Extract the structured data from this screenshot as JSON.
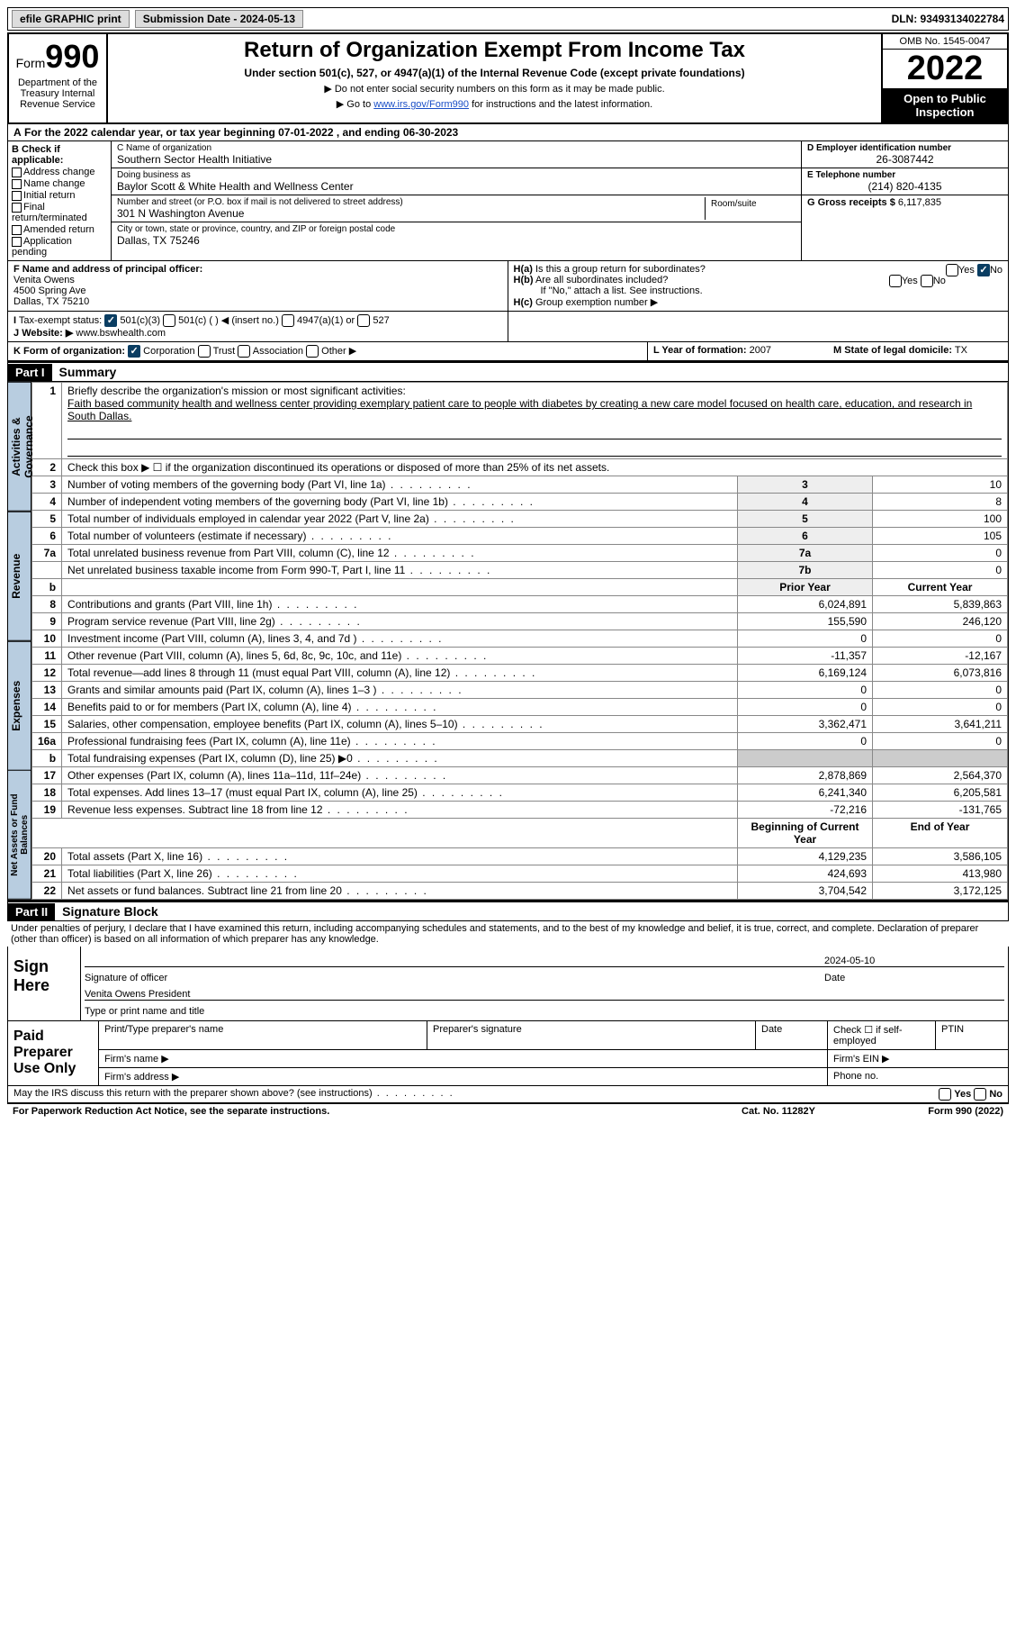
{
  "topbar": {
    "efile": "efile GRAPHIC print",
    "sub_label": "Submission Date - 2024-05-13",
    "dln": "DLN: 93493134022784"
  },
  "header": {
    "form_prefix": "Form",
    "form_num": "990",
    "title": "Return of Organization Exempt From Income Tax",
    "subtitle": "Under section 501(c), 527, or 4947(a)(1) of the Internal Revenue Code (except private foundations)",
    "note1": "▶ Do not enter social security numbers on this form as it may be made public.",
    "note2_pre": "▶ Go to ",
    "note2_link": "www.irs.gov/Form990",
    "note2_post": " for instructions and the latest information.",
    "omb": "OMB No. 1545-0047",
    "year": "2022",
    "open": "Open to Public Inspection",
    "dept": "Department of the Treasury Internal Revenue Service"
  },
  "calrow": "For the 2022 calendar year, or tax year beginning 07-01-2022    , and ending 06-30-2023",
  "sectionB": {
    "label": "B Check if applicable:",
    "items": [
      "Address change",
      "Name change",
      "Initial return",
      "Final return/terminated",
      "Amended return",
      "Application pending"
    ]
  },
  "sectionC": {
    "name_label": "C Name of organization",
    "name": "Southern Sector Health Initiative",
    "dba_label": "Doing business as",
    "dba": "Baylor Scott & White Health and Wellness Center",
    "street_label": "Number and street (or P.O. box if mail is not delivered to street address)",
    "room_label": "Room/suite",
    "street": "301 N Washington Avenue",
    "city_label": "City or town, state or province, country, and ZIP or foreign postal code",
    "city": "Dallas, TX  75246"
  },
  "sectionD": {
    "label": "D Employer identification number",
    "val": "26-3087442"
  },
  "sectionE": {
    "label": "E Telephone number",
    "val": "(214) 820-4135"
  },
  "sectionG": {
    "label": "G Gross receipts $",
    "val": "6,117,835"
  },
  "sectionF": {
    "label": "F Name and address of principal officer:",
    "name": "Venita Owens",
    "addr1": "4500 Spring Ave",
    "addr2": "Dallas, TX  75210"
  },
  "sectionH": {
    "a": "Is this a group return for subordinates?",
    "b": "Are all subordinates included?",
    "b_note": "If \"No,\" attach a list. See instructions.",
    "c": "Group exemption number ▶",
    "prefix_a": "H(a)",
    "prefix_b": "H(b)",
    "prefix_c": "H(c)",
    "yes": "Yes",
    "no": "No"
  },
  "sectionI": {
    "label": "Tax-exempt status:",
    "opts": [
      "501(c)(3)",
      "501(c) (  ) ◀ (insert no.)",
      "4947(a)(1) or",
      "527"
    ]
  },
  "sectionJ": {
    "label": "Website: ▶",
    "val": "www.bswhealth.com"
  },
  "sectionK": {
    "label": "K Form of organization:",
    "opts": [
      "Corporation",
      "Trust",
      "Association",
      "Other ▶"
    ]
  },
  "sectionL": {
    "label": "L Year of formation:",
    "val": "2007"
  },
  "sectionM": {
    "label": "M State of legal domicile:",
    "val": "TX"
  },
  "part1": {
    "hdr": "Part I",
    "title": "Summary",
    "q1_label": "Briefly describe the organization's mission or most significant activities:",
    "q1_text": "Faith based community health and wellness center providing exemplary patient care to people with diabetes by creating a new care model focused on health care, education, and research in South Dallas.",
    "q2": "Check this box ▶ ☐ if the organization discontinued its operations or disposed of more than 25% of its net assets.",
    "tabs": {
      "act": "Activities & Governance",
      "rev": "Revenue",
      "exp": "Expenses",
      "net": "Net Assets or Fund Balances"
    },
    "col_prior": "Prior Year",
    "col_curr": "Current Year",
    "col_begin": "Beginning of Current Year",
    "col_end": "End of Year",
    "rows_gov": [
      {
        "n": "3",
        "t": "Number of voting members of the governing body (Part VI, line 1a)",
        "box": "3",
        "v": "10"
      },
      {
        "n": "4",
        "t": "Number of independent voting members of the governing body (Part VI, line 1b)",
        "box": "4",
        "v": "8"
      },
      {
        "n": "5",
        "t": "Total number of individuals employed in calendar year 2022 (Part V, line 2a)",
        "box": "5",
        "v": "100"
      },
      {
        "n": "6",
        "t": "Total number of volunteers (estimate if necessary)",
        "box": "6",
        "v": "105"
      },
      {
        "n": "7a",
        "t": "Total unrelated business revenue from Part VIII, column (C), line 12",
        "box": "7a",
        "v": "0"
      },
      {
        "n": "",
        "t": "Net unrelated business taxable income from Form 990-T, Part I, line 11",
        "box": "7b",
        "v": "0"
      }
    ],
    "rows_rev": [
      {
        "n": "8",
        "t": "Contributions and grants (Part VIII, line 1h)",
        "p": "6,024,891",
        "c": "5,839,863"
      },
      {
        "n": "9",
        "t": "Program service revenue (Part VIII, line 2g)",
        "p": "155,590",
        "c": "246,120"
      },
      {
        "n": "10",
        "t": "Investment income (Part VIII, column (A), lines 3, 4, and 7d )",
        "p": "0",
        "c": "0"
      },
      {
        "n": "11",
        "t": "Other revenue (Part VIII, column (A), lines 5, 6d, 8c, 9c, 10c, and 11e)",
        "p": "-11,357",
        "c": "-12,167"
      },
      {
        "n": "12",
        "t": "Total revenue—add lines 8 through 11 (must equal Part VIII, column (A), line 12)",
        "p": "6,169,124",
        "c": "6,073,816"
      }
    ],
    "rows_exp": [
      {
        "n": "13",
        "t": "Grants and similar amounts paid (Part IX, column (A), lines 1–3 )",
        "p": "0",
        "c": "0"
      },
      {
        "n": "14",
        "t": "Benefits paid to or for members (Part IX, column (A), line 4)",
        "p": "0",
        "c": "0"
      },
      {
        "n": "15",
        "t": "Salaries, other compensation, employee benefits (Part IX, column (A), lines 5–10)",
        "p": "3,362,471",
        "c": "3,641,211"
      },
      {
        "n": "16a",
        "t": "Professional fundraising fees (Part IX, column (A), line 11e)",
        "p": "0",
        "c": "0"
      },
      {
        "n": "b",
        "t": "Total fundraising expenses (Part IX, column (D), line 25) ▶0",
        "p": "shade",
        "c": "shade"
      },
      {
        "n": "17",
        "t": "Other expenses (Part IX, column (A), lines 11a–11d, 11f–24e)",
        "p": "2,878,869",
        "c": "2,564,370"
      },
      {
        "n": "18",
        "t": "Total expenses. Add lines 13–17 (must equal Part IX, column (A), line 25)",
        "p": "6,241,340",
        "c": "6,205,581"
      },
      {
        "n": "19",
        "t": "Revenue less expenses. Subtract line 18 from line 12",
        "p": "-72,216",
        "c": "-131,765"
      }
    ],
    "rows_net": [
      {
        "n": "20",
        "t": "Total assets (Part X, line 16)",
        "p": "4,129,235",
        "c": "3,586,105"
      },
      {
        "n": "21",
        "t": "Total liabilities (Part X, line 26)",
        "p": "424,693",
        "c": "413,980"
      },
      {
        "n": "22",
        "t": "Net assets or fund balances. Subtract line 21 from line 20",
        "p": "3,704,542",
        "c": "3,172,125"
      }
    ]
  },
  "part2": {
    "hdr": "Part II",
    "title": "Signature Block",
    "decl": "Under penalties of perjury, I declare that I have examined this return, including accompanying schedules and statements, and to the best of my knowledge and belief, it is true, correct, and complete. Declaration of preparer (other than officer) is based on all information of which preparer has any knowledge.",
    "sign_here": "Sign Here",
    "sig_officer": "Signature of officer",
    "sig_date": "2024-05-10",
    "date_label": "Date",
    "officer_name": "Venita Owens  President",
    "type_label": "Type or print name and title",
    "paid": "Paid Preparer Use Only",
    "prep_name": "Print/Type preparer's name",
    "prep_sig": "Preparer's signature",
    "prep_date": "Date",
    "check_if": "Check ☐ if self-employed",
    "ptin": "PTIN",
    "firm_name": "Firm's name  ▶",
    "firm_ein": "Firm's EIN ▶",
    "firm_addr": "Firm's address ▶",
    "phone": "Phone no."
  },
  "footer": {
    "irs_discuss": "May the IRS discuss this return with the preparer shown above? (see instructions)",
    "yes": "Yes",
    "no": "No",
    "pra": "For Paperwork Reduction Act Notice, see the separate instructions.",
    "cat": "Cat. No. 11282Y",
    "form": "Form 990 (2022)"
  }
}
